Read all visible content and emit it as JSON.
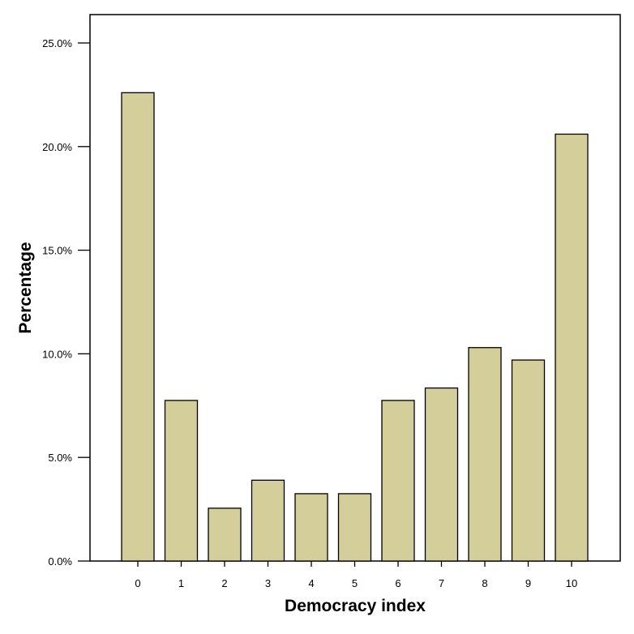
{
  "chart_data": {
    "type": "bar",
    "xlabel": "Democracy index",
    "ylabel": "Percentage",
    "categories": [
      "0",
      "1",
      "2",
      "3",
      "4",
      "5",
      "6",
      "7",
      "8",
      "9",
      "10"
    ],
    "values": [
      22.6,
      7.75,
      2.55,
      3.9,
      3.25,
      3.25,
      7.75,
      8.35,
      10.3,
      9.7,
      20.6
    ],
    "ylim": [
      0,
      25
    ],
    "yticks": [
      0,
      5,
      10,
      15,
      20,
      25
    ],
    "ytick_labels": [
      "0.0%",
      "5.0%",
      "10.0%",
      "15.0%",
      "20.0%",
      "25.0%"
    ],
    "grid": false,
    "bar_color": "#d4cf9a",
    "edge_color": "#000000"
  }
}
